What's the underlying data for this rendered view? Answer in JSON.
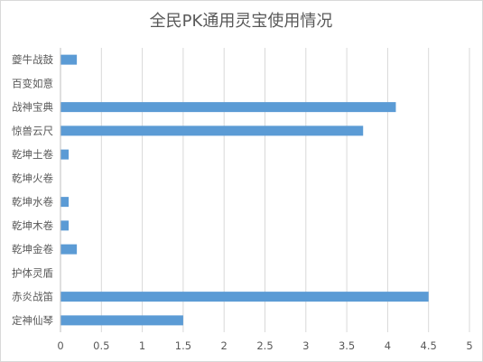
{
  "chart_data": {
    "type": "bar",
    "orientation": "horizontal",
    "title": "全民PK通用灵宝使用情况",
    "xlabel": "",
    "ylabel": "",
    "categories": [
      "夔牛战鼓",
      "百变如意",
      "战神宝典",
      "惊兽云尺",
      "乾坤土卷",
      "乾坤火卷",
      "乾坤水卷",
      "乾坤木卷",
      "乾坤金卷",
      "护体灵盾",
      "赤炎战笛",
      "定神仙琴"
    ],
    "values": [
      0.2,
      0,
      4.1,
      3.7,
      0.1,
      0,
      0.1,
      0.1,
      0.2,
      0,
      4.5,
      1.5
    ],
    "xlim": [
      0,
      5
    ],
    "xticks": [
      "0",
      "0.5",
      "1",
      "1.5",
      "2",
      "2.5",
      "3",
      "3.5",
      "4",
      "4.5",
      "5"
    ],
    "xtick_values": [
      0,
      0.5,
      1,
      1.5,
      2,
      2.5,
      3,
      3.5,
      4,
      4.5,
      5
    ],
    "grid": true,
    "legend": "none",
    "bar_color": "#5b9bd5"
  }
}
